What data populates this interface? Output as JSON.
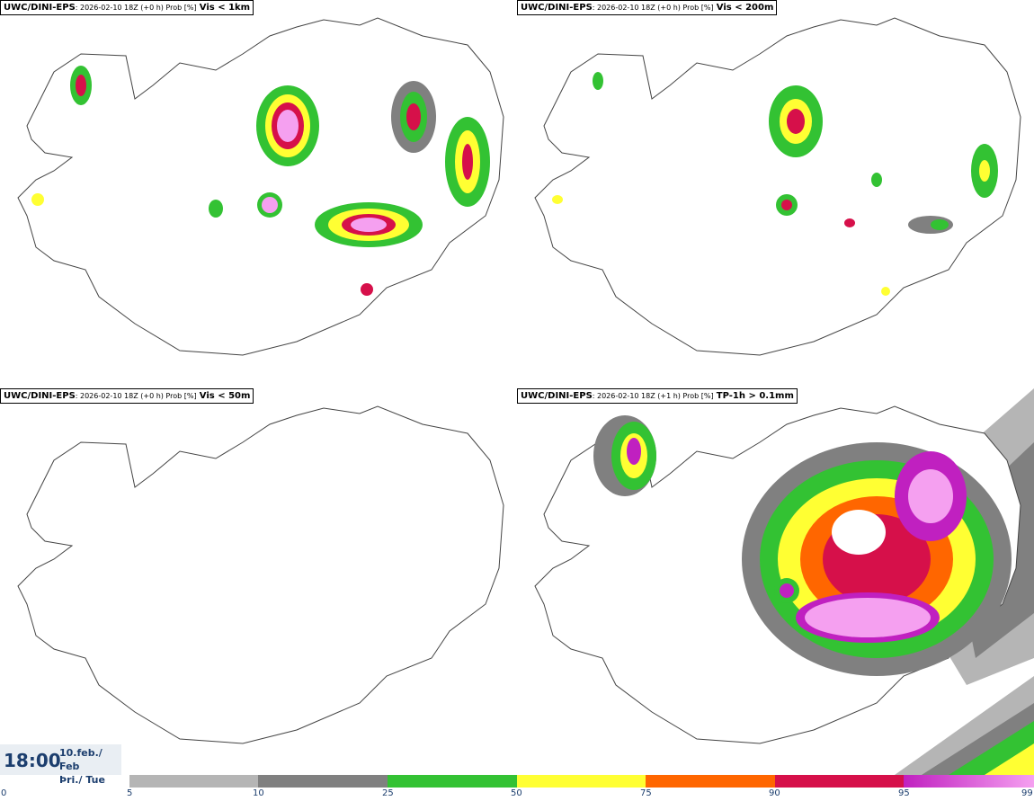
{
  "panels": [
    {
      "source": "UWC/DINI-EPS",
      "meta": ": 2026-02-10 18Z (+0 h) Prob [%]",
      "variable": "Vis < 1km"
    },
    {
      "source": "UWC/DINI-EPS",
      "meta": ": 2026-02-10 18Z (+0 h) Prob [%]",
      "variable": "Vis < 200m"
    },
    {
      "source": "UWC/DINI-EPS",
      "meta": ": 2026-02-10 18Z (+0 h) Prob [%]",
      "variable": "Vis < 50m"
    },
    {
      "source": "UWC/DINI-EPS",
      "meta": ": 2026-02-10 18Z (+1 h) Prob [%]",
      "variable": "TP-1h > 0.1mm"
    }
  ],
  "time": {
    "clock": "18:00",
    "date_line": "10.feb./ Feb",
    "day_line": "Þri./ Tue"
  },
  "colorbar": {
    "ticks": [
      "0",
      "5",
      "10",
      "25",
      "50",
      "75",
      "90",
      "95",
      "99"
    ],
    "colors": {
      "p5": "#b5b5b5",
      "p10": "#808080",
      "p25": "#33c233",
      "p50": "#ffff33",
      "p75": "#ff6600",
      "p90": "#d6104a",
      "p95": "#c020c0",
      "p99": "#f5a0f0"
    }
  }
}
